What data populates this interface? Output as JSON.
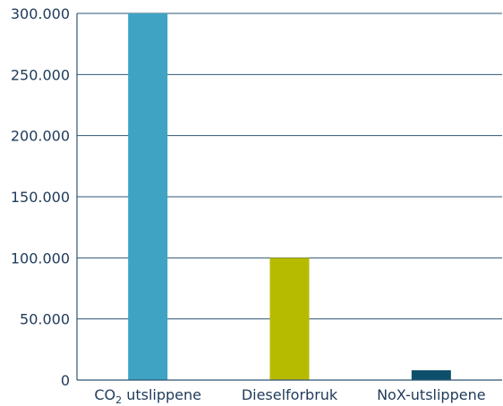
{
  "chart_data": {
    "type": "bar",
    "categories": [
      {
        "main": "CO",
        "sub": "2",
        "rest": " utslippene"
      },
      {
        "main": "Dieselforbruk",
        "sub": "",
        "rest": ""
      },
      {
        "main": "NoX-utslippene",
        "sub": "",
        "rest": ""
      }
    ],
    "values": [
      300000,
      100000,
      8000
    ],
    "colors": [
      "#3fa4c4",
      "#b7bb00",
      "#0d4f6b"
    ],
    "ylim": [
      0,
      300000
    ],
    "yticks": [
      0,
      50000,
      100000,
      150000,
      200000,
      250000,
      300000
    ],
    "ytick_labels": [
      "0",
      "50.000",
      "100.000",
      "150.000",
      "200.000",
      "250.000",
      "300.000"
    ],
    "grid": true,
    "legend": "none",
    "title": "",
    "xlabel": "",
    "ylabel": ""
  }
}
